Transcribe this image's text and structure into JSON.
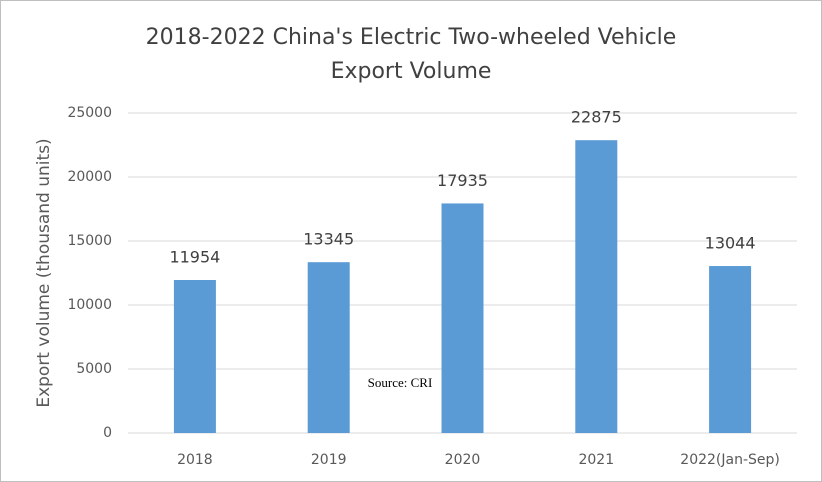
{
  "chart_data": {
    "type": "bar",
    "title": [
      "2018-2022 China's Electric Two-wheeled Vehicle",
      "Export Volume"
    ],
    "y_label": "Export volume (thousand units)",
    "annotation": "Source: CRI",
    "categories": [
      "2018",
      "2019",
      "2020",
      "2021",
      "2022(Jan-Sep)"
    ],
    "values": [
      11954,
      13345,
      17935,
      22875,
      13044
    ],
    "color": "#5b9bd5",
    "ylim": [
      0,
      25000
    ],
    "yticks": [
      0,
      5000,
      10000,
      15000,
      20000,
      25000
    ],
    "grid": true
  }
}
